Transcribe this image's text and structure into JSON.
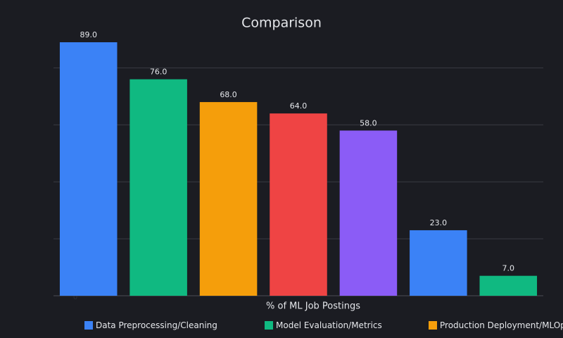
{
  "chart_data": {
    "type": "bar",
    "title": "Comparison",
    "x_label": "% of ML Job Postings",
    "values": [
      89.0,
      76.0,
      68.0,
      64.0,
      58.0,
      23.0,
      7.0
    ],
    "value_labels": [
      "89.0",
      "76.0",
      "68.0",
      "64.0",
      "58.0",
      "23.0",
      "7.0"
    ],
    "colors": [
      "#3b82f6",
      "#10b981",
      "#f59e0b",
      "#ef4444",
      "#8b5cf6",
      "#3b82f6",
      "#10b981"
    ],
    "ylim": [
      0,
      89
    ],
    "yticks": [
      0,
      20,
      40,
      60,
      80
    ],
    "grid": true,
    "legend": [
      {
        "name": "Data Preprocessing/Cleaning",
        "color": "#3b82f6"
      },
      {
        "name": "Model Evaluation/Metrics",
        "color": "#10b981"
      },
      {
        "name": "Production Deployment/MLOps",
        "color": "#f59e0b"
      }
    ]
  }
}
